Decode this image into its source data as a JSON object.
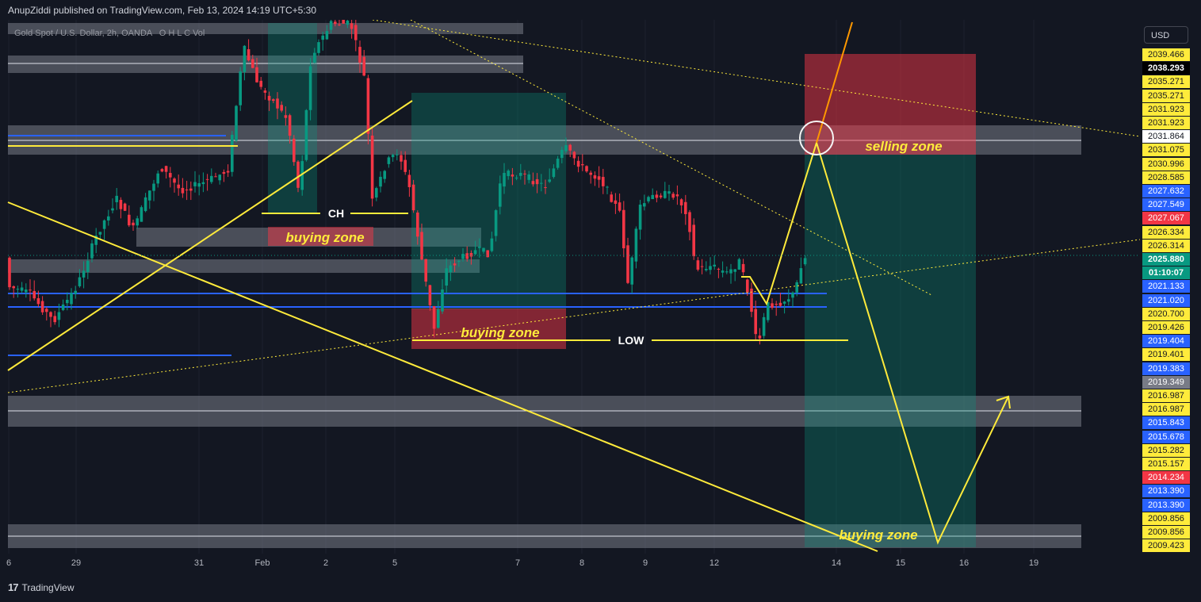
{
  "header": {
    "published_line": "AnupZiddi published on TradingView.com, Feb 13, 2024 14:19 UTC+5:30"
  },
  "legend": {
    "symbol": "Gold Spot / U.S. Dollar, 2h, OANDA",
    "ohlc": "O  H  L  C  Vol"
  },
  "toolbar": {
    "currency": "USD"
  },
  "footer": {
    "brand": "TradingView"
  },
  "colors": {
    "background": "#131722",
    "bull_candle": "#089981",
    "bear_candle": "#f23645",
    "drawing_yellow": "#ffeb3b",
    "zone_gray": "#787b86",
    "level_blue": "#2962ff",
    "buy_zone_fill": "#089981",
    "sell_zone_fill": "#f23645"
  },
  "annotations": {
    "ch": "CH",
    "low": "LOW",
    "buying_zone_1": "buying zone",
    "buying_zone_2": "buying zone",
    "buying_zone_3": "buying zone",
    "selling_zone": "selling zone"
  },
  "chart_data": {
    "type": "candlestick",
    "title": "",
    "symbol": "Gold Spot / U.S. Dollar",
    "interval": "2h",
    "source": "OANDA",
    "currency": "USD",
    "x_ticks": [
      "6",
      "29",
      "31",
      "Feb",
      "2",
      "5",
      "7",
      "8",
      "9",
      "12",
      "14",
      "15",
      "16",
      "19"
    ],
    "price_labels": [
      {
        "value": "2039.466",
        "style": "yellow"
      },
      {
        "value": "2038.293",
        "style": "black"
      },
      {
        "value": "2035.271",
        "style": "yellow"
      },
      {
        "value": "2035.271",
        "style": "yellow"
      },
      {
        "value": "2031.923",
        "style": "yellow"
      },
      {
        "value": "2031.923",
        "style": "yellow"
      },
      {
        "value": "2031.864",
        "style": "white"
      },
      {
        "value": "2031.075",
        "style": "yellow"
      },
      {
        "value": "2030.996",
        "style": "yellow"
      },
      {
        "value": "2028.585",
        "style": "yellow"
      },
      {
        "value": "2027.632",
        "style": "blue"
      },
      {
        "value": "2027.549",
        "style": "blue"
      },
      {
        "value": "2027.067",
        "style": "red"
      },
      {
        "value": "2026.334",
        "style": "yellow"
      },
      {
        "value": "2026.314",
        "style": "yellow"
      },
      {
        "value": "2025.880",
        "style": "green"
      },
      {
        "value": "01:10:07",
        "style": "green"
      },
      {
        "value": "2021.133",
        "style": "blue"
      },
      {
        "value": "2021.020",
        "style": "blue"
      },
      {
        "value": "2020.700",
        "style": "yellow"
      },
      {
        "value": "2019.426",
        "style": "yellow"
      },
      {
        "value": "2019.404",
        "style": "blue"
      },
      {
        "value": "2019.401",
        "style": "yellow"
      },
      {
        "value": "2019.383",
        "style": "blue"
      },
      {
        "value": "2019.349",
        "style": "gray"
      },
      {
        "value": "2016.987",
        "style": "yellow"
      },
      {
        "value": "2016.987",
        "style": "yellow"
      },
      {
        "value": "2015.843",
        "style": "blue"
      },
      {
        "value": "2015.678",
        "style": "blue"
      },
      {
        "value": "2015.282",
        "style": "yellow"
      },
      {
        "value": "2015.157",
        "style": "yellow"
      },
      {
        "value": "2014.234",
        "style": "red"
      },
      {
        "value": "2013.390",
        "style": "blue"
      },
      {
        "value": "2013.390",
        "style": "blue"
      },
      {
        "value": "2009.856",
        "style": "yellow"
      },
      {
        "value": "2009.856",
        "style": "yellow"
      },
      {
        "value": "2009.423",
        "style": "yellow"
      }
    ],
    "last_price": 2025.88,
    "countdown": "01:10:07"
  }
}
